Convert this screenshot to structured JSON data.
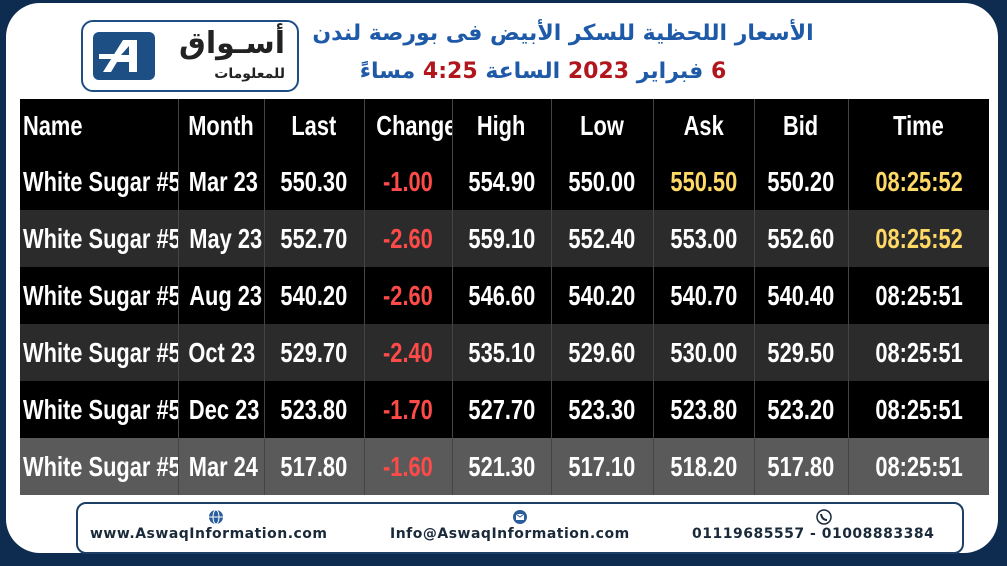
{
  "logo": {
    "name": "أسـواق",
    "tagline": "للمعلومات"
  },
  "header": {
    "title": "الأسعار اللحظية للسكر الأبيض فى بورصة لندن",
    "date_parts": [
      "6",
      "فبراير",
      "2023",
      "الساعة",
      "4:25",
      "مساءً"
    ]
  },
  "table": {
    "columns": [
      "Name",
      "Month",
      "Last",
      "Change",
      "High",
      "Low",
      "Ask",
      "Bid",
      "Time"
    ],
    "rows": [
      [
        "White Sugar #5",
        "Mar 23",
        "550.30",
        "-1.00",
        "554.90",
        "550.00",
        "550.50",
        "550.20",
        "08:25:52"
      ],
      [
        "White Sugar #5",
        "May 23",
        "552.70",
        "-2.60",
        "559.10",
        "552.40",
        "553.00",
        "552.60",
        "08:25:52"
      ],
      [
        "White Sugar #5",
        "Aug 23",
        "540.20",
        "-2.60",
        "546.60",
        "540.20",
        "540.70",
        "540.40",
        "08:25:51"
      ],
      [
        "White Sugar #5",
        "Oct 23",
        "529.70",
        "-2.40",
        "535.10",
        "529.60",
        "530.00",
        "529.50",
        "08:25:51"
      ],
      [
        "White Sugar #5",
        "Dec 23",
        "523.80",
        "-1.70",
        "527.70",
        "523.30",
        "523.80",
        "523.20",
        "08:25:51"
      ],
      [
        "White Sugar #5",
        "Mar 24",
        "517.80",
        "-1.60",
        "521.30",
        "517.10",
        "518.20",
        "517.80",
        "08:25:51"
      ]
    ]
  },
  "footer": {
    "website": "www.AswaqInformation.com",
    "email": "Info@AswaqInformation.com",
    "phone": "01119685557 - 01008883384"
  }
}
